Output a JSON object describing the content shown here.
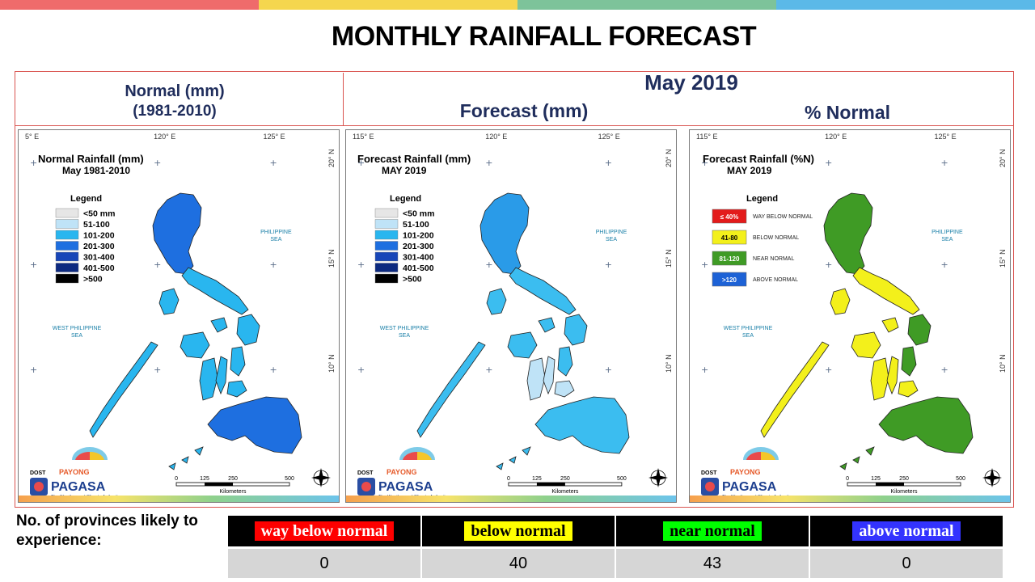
{
  "page": {
    "title": "MONTHLY RAINFALL FORECAST",
    "period": "May 2019",
    "header_colors": [
      "#ef6b6b",
      "#f5d64e",
      "#7dc39a",
      "#5bb9e8"
    ]
  },
  "columns": {
    "normal_line1": "Normal (mm)",
    "normal_line2": "(1981-2010)",
    "forecast": "Forecast (mm)",
    "percent_normal": "% Normal"
  },
  "maps": {
    "common": {
      "lon_labels": [
        "115° E",
        "120° E",
        "125° E"
      ],
      "lat_labels": [
        "20° N",
        "15° N",
        "10° N"
      ],
      "philippine_sea": [
        "PHILIPPINE",
        "SEA"
      ],
      "west_philippine_sea": [
        "WEST PHILIPPINE",
        "SEA"
      ],
      "kilometers": "Kilometers",
      "scale_ticks": [
        "0",
        "125",
        "250",
        "500"
      ],
      "logo_dost": "DOST",
      "logo_payong": "PAYONG",
      "logo_pagasa": "PAGASA",
      "logo_tagline": "The Weather and Climate Authority",
      "legend_title": "Legend"
    },
    "normal": {
      "title": "Normal Rainfall (mm)",
      "subtitle": "May 1981-2010",
      "lon_label_first": "5° E",
      "legend": [
        {
          "label": "<50 mm",
          "color": "#e6e6e6"
        },
        {
          "label": "51-100",
          "color": "#bfe3f7"
        },
        {
          "label": "101-200",
          "color": "#29b6ef"
        },
        {
          "label": "201-300",
          "color": "#1e6fe0"
        },
        {
          "label": "301-400",
          "color": "#1846b8"
        },
        {
          "label": "401-500",
          "color": "#0d2a80"
        },
        {
          "label": ">500",
          "color": "#000000"
        }
      ]
    },
    "forecast": {
      "title": "Forecast Rainfall (mm)",
      "subtitle": "MAY 2019",
      "lon_label_first": "115° E",
      "legend": [
        {
          "label": "<50 mm",
          "color": "#e6e6e6"
        },
        {
          "label": "51-100",
          "color": "#bfe3f7"
        },
        {
          "label": "101-200",
          "color": "#29b6ef"
        },
        {
          "label": "201-300",
          "color": "#1e6fe0"
        },
        {
          "label": "301-400",
          "color": "#1846b8"
        },
        {
          "label": "401-500",
          "color": "#0d2a80"
        },
        {
          "label": ">500",
          "color": "#000000"
        }
      ]
    },
    "percent": {
      "title": "Forecast Rainfall (%N)",
      "subtitle": "MAY 2019",
      "lon_label_first": "115° E",
      "legend": [
        {
          "chip": "≤ 40%",
          "label": "WAY BELOW NORMAL",
          "color": "#e31b1b"
        },
        {
          "chip": "41-80",
          "label": "BELOW NORMAL",
          "color": "#f3f01b"
        },
        {
          "chip": "81-120",
          "label": "NEAR NORMAL",
          "color": "#3f9b25"
        },
        {
          "chip": ">120",
          "label": "ABOVE NORMAL",
          "color": "#1d62d6"
        }
      ]
    }
  },
  "summary": {
    "label": "No. of provinces likely to experience:",
    "categories": [
      {
        "label": "way below normal",
        "value": "0",
        "bg": "#ff0000",
        "fg": "#ffffff"
      },
      {
        "label": "below normal",
        "value": "40",
        "bg": "#ffff00",
        "fg": "#000000"
      },
      {
        "label": "near normal",
        "value": "43",
        "bg": "#00ff00",
        "fg": "#000000"
      },
      {
        "label": "above normal",
        "value": "0",
        "bg": "#3333ff",
        "fg": "#ffffff"
      }
    ]
  }
}
